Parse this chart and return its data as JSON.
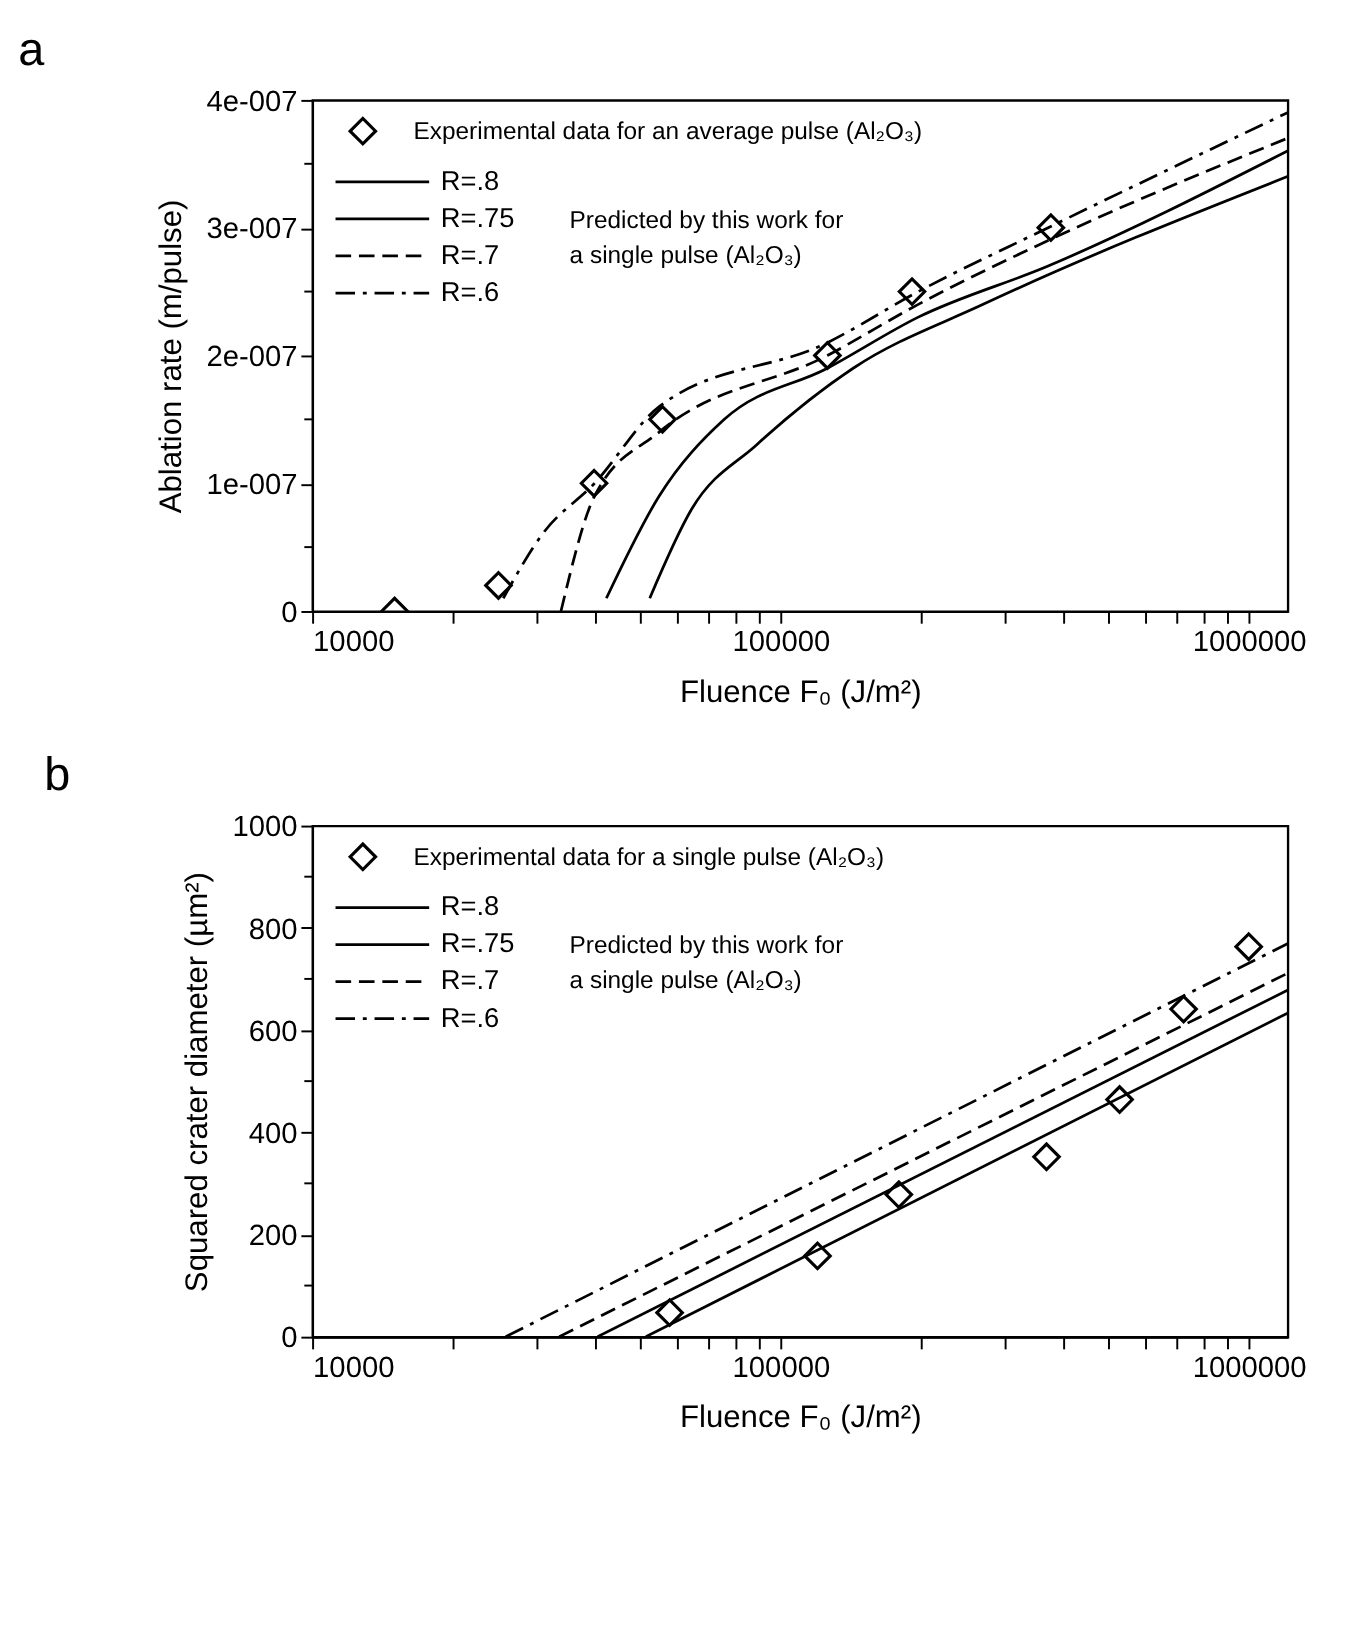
{
  "chart_data": [
    {
      "type": "line",
      "title": "a",
      "xlabel": "Fluence F₀ (J/m²)",
      "ylabel": "Ablation rate (m/pulse)",
      "log": "x",
      "xlim": [
        10000,
        1210000
      ],
      "ylim": [
        0,
        4e-07
      ],
      "xticks": [
        10000,
        {
          "value": 20000,
          "label": null
        },
        {
          "value": 30000,
          "label": null
        },
        {
          "value": 40000,
          "label": null
        },
        {
          "value": 50000,
          "label": null
        },
        {
          "value": 60000,
          "label": null
        },
        {
          "value": 70000,
          "label": null
        },
        {
          "value": 80000,
          "label": null
        },
        {
          "value": 90000,
          "label": null
        },
        100000,
        {
          "value": 200000,
          "label": null
        },
        {
          "value": 300000,
          "label": null
        },
        {
          "value": 400000,
          "label": null
        },
        {
          "value": 500000,
          "label": null
        },
        {
          "value": 600000,
          "label": null
        },
        {
          "value": 700000,
          "label": null
        },
        {
          "value": 800000,
          "label": null
        },
        {
          "value": 900000,
          "label": null
        },
        1000000
      ],
      "yticks": [
        0,
        {
          "value": 5e-08,
          "label": null
        },
        {
          "value": 1e-07,
          "label": "1e-007"
        },
        {
          "value": 1.5e-07,
          "label": null
        },
        {
          "value": 2e-07,
          "label": "2e-007"
        },
        {
          "value": 2.5e-07,
          "label": null
        },
        {
          "value": 3e-07,
          "label": "3e-007"
        },
        {
          "value": 3.5e-07,
          "label": null
        },
        {
          "value": 4e-07,
          "label": "4e-007"
        }
      ],
      "grid": false,
      "legend": "top left",
      "annotations": [
        "Predicted by this work for a single pulse (Al₂O₃)"
      ],
      "series": [
        {
          "name": "Experimental data for an average pulse (Al₂O₃)",
          "type": "scatter",
          "marker": "diamond",
          "color": "#000000",
          "x": [
            15000,
            25000,
            40000,
            56000,
            126000,
            191000,
            378000
          ],
          "values": [
            0,
            2e-08,
            1e-07,
            1.5e-07,
            2e-07,
            2.5e-07,
            3e-07
          ]
        },
        {
          "name": "R=.8",
          "line_style": "solid",
          "color": "#000000",
          "x": [
            52600,
            64700,
            88900,
            143000,
            271000,
            1210000
          ],
          "values": [
            1e-08,
            8e-08,
            1.3e-07,
            1.9e-07,
            2.4e-07,
            3.4e-07
          ]
        },
        {
          "name": "R=.75",
          "line_style": "solid",
          "color": "#000000",
          "x": [
            42500,
            55100,
            75900,
            126000,
            197000,
            373000,
            1210000
          ],
          "values": [
            1e-08,
            9e-08,
            1.5e-07,
            1.9e-07,
            2.3e-07,
            2.7e-07,
            3.6e-07
          ]
        },
        {
          "name": "R=.7",
          "line_style": "dashed",
          "color": "#000000",
          "x": [
            34000,
            40100,
            55100,
            126000,
            197000,
            373000,
            1210000
          ],
          "values": [
            0,
            9e-08,
            1.4e-07,
            2e-07,
            2.4e-07,
            2.9e-07,
            3.7e-07
          ]
        },
        {
          "name": "R=.6",
          "line_style": "dashdot",
          "color": "#000000",
          "x": [
            25600,
            31000,
            40100,
            55100,
            126000,
            197000,
            373000,
            1210000
          ],
          "values": [
            1e-08,
            6e-08,
            1e-07,
            1.6e-07,
            2.1e-07,
            2.5e-07,
            3e-07,
            3.9e-07
          ]
        }
      ]
    },
    {
      "type": "line",
      "title": "b",
      "xlabel": "Fluence F₀ (J/m²)",
      "ylabel": "Squared crater diameter (µm²)",
      "log": "x",
      "xlim": [
        10000,
        1210000
      ],
      "ylim": [
        0,
        1000
      ],
      "xticks": [
        10000,
        {
          "value": 20000,
          "label": null
        },
        {
          "value": 30000,
          "label": null
        },
        {
          "value": 40000,
          "label": null
        },
        {
          "value": 50000,
          "label": null
        },
        {
          "value": 60000,
          "label": null
        },
        {
          "value": 70000,
          "label": null
        },
        {
          "value": 80000,
          "label": null
        },
        {
          "value": 90000,
          "label": null
        },
        100000,
        {
          "value": 200000,
          "label": null
        },
        {
          "value": 300000,
          "label": null
        },
        {
          "value": 400000,
          "label": null
        },
        {
          "value": 500000,
          "label": null
        },
        {
          "value": 600000,
          "label": null
        },
        {
          "value": 700000,
          "label": null
        },
        {
          "value": 800000,
          "label": null
        },
        {
          "value": 900000,
          "label": null
        },
        1000000
      ],
      "yticks": [
        0,
        {
          "value": 100,
          "label": null
        },
        200,
        {
          "value": 300,
          "label": null
        },
        400,
        {
          "value": 500,
          "label": null
        },
        600,
        {
          "value": 700,
          "label": null
        },
        800,
        {
          "value": 900,
          "label": null
        },
        1000
      ],
      "grid": false,
      "legend": "top left",
      "annotations": [
        "Predicted by this work for a single pulse (Al₂O₃)"
      ],
      "series": [
        {
          "name": "Experimental data for a single pulse (Al₂O₃)",
          "type": "scatter",
          "marker": "diamond",
          "color": "#000000",
          "x": [
            58000,
            120000,
            179000,
            370000,
            530000,
            726000,
            1000000
          ],
          "values": [
            47,
            158,
            278,
            352,
            464,
            641,
            763
          ]
        },
        {
          "name": "R=.8",
          "line_style": "solid",
          "color": "#000000",
          "x": [
            51600,
            1210000
          ],
          "values": [
            0,
            633
          ]
        },
        {
          "name": "R=.75",
          "line_style": "solid",
          "color": "#000000",
          "x": [
            40700,
            1210000
          ],
          "values": [
            0,
            678
          ]
        },
        {
          "name": "R=.7",
          "line_style": "dashed",
          "color": "#000000",
          "x": [
            33700,
            1210000
          ],
          "values": [
            0,
            711
          ]
        },
        {
          "name": "R=.6",
          "line_style": "dashdot",
          "color": "#000000",
          "x": [
            25900,
            1210000
          ],
          "values": [
            0,
            769
          ]
        }
      ]
    }
  ]
}
